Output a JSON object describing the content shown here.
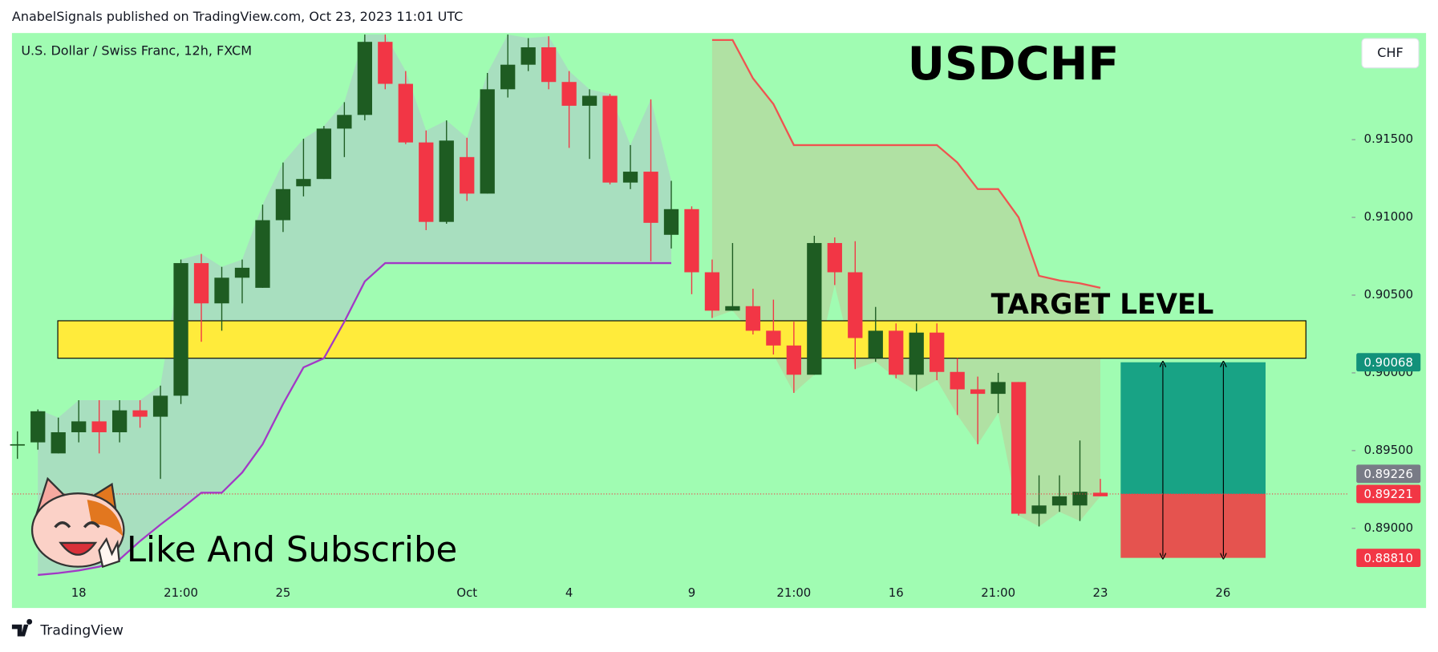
{
  "header": {
    "text": "AnabelSignals published on TradingView.com, Oct 23, 2023 11:01 UTC"
  },
  "footer": {
    "logo": "TradingView"
  },
  "chart_data": {
    "type": "candlestick",
    "title": "USDCHF",
    "subtitle": "U.S. Dollar / Swiss Franc, 12h, FXCM",
    "currency": "CHF",
    "categories": [
      null,
      null,
      null,
      "18",
      null,
      null,
      null,
      null,
      "21:00",
      null,
      null,
      null,
      null,
      "25",
      null,
      null,
      null,
      null,
      null,
      null,
      null,
      null,
      "Oct",
      null,
      null,
      null,
      null,
      "4",
      null,
      null,
      null,
      null,
      null,
      "9",
      null,
      null,
      null,
      null,
      "21:00",
      null,
      null,
      null,
      null,
      "16",
      null,
      null,
      null,
      null,
      "21:00",
      null,
      null,
      null,
      null,
      "23",
      null,
      null,
      null,
      null,
      null,
      "26",
      null,
      null,
      null,
      null,
      null,
      null
    ],
    "open": [
      0.89541,
      0.89553,
      0.89482,
      0.89618,
      0.89688,
      0.89618,
      0.89759,
      0.89718,
      0.89853,
      0.90706,
      0.90447,
      0.90612,
      0.90547,
      0.90982,
      0.912,
      0.91247,
      0.91571,
      0.91659,
      0.92129,
      0.91859,
      0.91482,
      0.90971,
      0.91388,
      0.91153,
      0.91824,
      0.91982,
      0.92094,
      0.91871,
      0.91718,
      0.91782,
      0.91224,
      0.91294,
      0.90888,
      0.91053,
      0.90647,
      0.904,
      0.90429,
      0.90271,
      0.90176,
      0.89988,
      0.90835,
      0.90647,
      0.90094,
      0.90271,
      0.89988,
      0.90259,
      0.90006,
      0.89894,
      0.89865,
      0.89941,
      0.89094,
      0.89147,
      0.89147,
      0.89229,
      null,
      null,
      null,
      null,
      null,
      null,
      null,
      null,
      null,
      null,
      null,
      null
    ],
    "high": [
      0.89624,
      0.89765,
      0.89712,
      0.89824,
      0.89824,
      0.89824,
      0.89824,
      0.89918,
      0.90729,
      0.90765,
      0.90682,
      0.90729,
      0.91082,
      0.91353,
      0.91506,
      0.91588,
      0.91741,
      0.92176,
      0.92176,
      0.91941,
      0.91559,
      0.91624,
      0.91512,
      0.91929,
      0.92176,
      0.92153,
      0.92165,
      0.91941,
      0.91824,
      0.91794,
      0.91465,
      0.91759,
      0.91235,
      0.91071,
      0.90729,
      0.90835,
      0.90541,
      0.90471,
      0.90329,
      0.90882,
      0.90871,
      0.90847,
      0.90424,
      0.90318,
      0.90318,
      0.90318,
      0.90094,
      0.89976,
      0.9,
      0.89941,
      0.89341,
      0.89341,
      0.89565,
      0.89318,
      null,
      null,
      null,
      null,
      null,
      null,
      null,
      null,
      null,
      null,
      null,
      null
    ],
    "low": [
      0.89447,
      0.89506,
      0.89482,
      0.89553,
      0.89482,
      0.89553,
      0.89647,
      0.89318,
      0.898,
      0.902,
      0.90271,
      0.90447,
      0.90547,
      0.90906,
      0.91135,
      0.91247,
      0.91388,
      0.91624,
      0.91824,
      0.91471,
      0.90918,
      0.90959,
      0.91106,
      0.91153,
      0.91771,
      0.91941,
      0.91824,
      0.91447,
      0.91376,
      0.91212,
      0.91182,
      0.90718,
      0.908,
      0.90506,
      0.90353,
      0.904,
      0.90247,
      0.90118,
      0.89871,
      0.89988,
      0.90565,
      0.90024,
      0.90071,
      0.89965,
      0.89882,
      0.89953,
      0.89729,
      0.89541,
      0.89741,
      0.89082,
      0.89012,
      0.89106,
      0.89047,
      0.89206,
      null,
      null,
      null,
      null,
      null,
      null,
      null,
      null,
      null,
      null,
      null,
      null
    ],
    "close": [
      0.89541,
      0.89753,
      0.89618,
      0.89688,
      0.89618,
      0.89759,
      0.89718,
      0.89853,
      0.90706,
      0.90447,
      0.90612,
      0.90676,
      0.90982,
      0.91182,
      0.91247,
      0.91571,
      0.91659,
      0.92129,
      0.91859,
      0.91482,
      0.90971,
      0.91494,
      0.91153,
      0.91824,
      0.91982,
      0.92094,
      0.91871,
      0.91718,
      0.91782,
      0.91224,
      0.91294,
      0.90965,
      0.91053,
      0.90647,
      0.904,
      0.90429,
      0.90271,
      0.90176,
      0.89988,
      0.90835,
      0.90647,
      0.90224,
      0.90271,
      0.89988,
      0.90259,
      0.90006,
      0.89894,
      0.89865,
      0.89941,
      0.89094,
      0.89147,
      0.89206,
      0.89235,
      0.89206,
      null,
      null,
      null,
      null,
      null,
      null,
      null,
      null,
      null,
      null,
      null,
      null
    ],
    "up_color": "#1e5c22",
    "down_color": "#f23645",
    "ylim": [
      0.887,
      0.9218
    ],
    "yticks": [
      {
        "value": 0.89,
        "label": "0.89000"
      },
      {
        "value": 0.895,
        "label": "0.89500"
      },
      {
        "value": 0.9,
        "label": "0.90000"
      },
      {
        "value": 0.905,
        "label": "0.90500"
      },
      {
        "value": 0.91,
        "label": "0.91000"
      },
      {
        "value": 0.915,
        "label": "0.91500"
      }
    ],
    "lines": [
      {
        "color": "#a238c6",
        "fill": "#a9dcc0",
        "values": [
          null,
          0.887,
          0.88712,
          0.88729,
          0.88753,
          0.888,
          0.88918,
          0.89024,
          0.89124,
          0.89229,
          0.89229,
          0.89359,
          0.89541,
          0.898,
          0.90035,
          0.90094,
          0.90329,
          0.90588,
          0.90706,
          0.90706,
          0.90706,
          0.90706,
          0.90706,
          0.90706,
          0.90706,
          0.90706,
          0.90706,
          0.90706,
          0.90706,
          0.90706,
          0.90706,
          0.90706,
          0.90706,
          null,
          null,
          null,
          null,
          null,
          null,
          null,
          null,
          null,
          null,
          null,
          null,
          null,
          null,
          null,
          null,
          null,
          null,
          null,
          null,
          null,
          null,
          null,
          null,
          null,
          null,
          null,
          null,
          null,
          null,
          null,
          null,
          null
        ]
      },
      {
        "color": "#ef5350",
        "fill": "#b1dea1",
        "values": [
          null,
          null,
          null,
          null,
          null,
          null,
          null,
          null,
          null,
          null,
          null,
          null,
          null,
          null,
          null,
          null,
          null,
          null,
          null,
          null,
          null,
          null,
          null,
          null,
          null,
          null,
          null,
          null,
          null,
          null,
          null,
          null,
          null,
          null,
          0.92141,
          0.92141,
          0.91894,
          0.91729,
          0.91465,
          0.91465,
          0.91465,
          0.91465,
          0.91465,
          0.91465,
          0.91465,
          0.91465,
          0.91353,
          0.91182,
          0.91182,
          0.91,
          0.90624,
          0.90594,
          0.90576,
          0.90547,
          null,
          null,
          null,
          null,
          null,
          null,
          null,
          null,
          null,
          null,
          null,
          null
        ]
      }
    ],
    "zone": {
      "label": "TARGET LEVEL",
      "range": [
        0.90094,
        0.90335
      ],
      "color": "#ffeb3b"
    },
    "profit_color": "#18a385",
    "loss_color": "#e5534f",
    "price_labels": [
      {
        "value": 0.90068,
        "label": "0.90068",
        "color": "#12917a"
      },
      {
        "value": 0.89226,
        "label": "0.89226",
        "color": "#787b86"
      },
      {
        "value": 0.89221,
        "label": "0.89221",
        "color": "#f23645"
      },
      {
        "value": 0.8881,
        "label": "0.88810",
        "color": "#f23645"
      }
    ],
    "annotations": [
      "Like And Subscribe"
    ]
  }
}
